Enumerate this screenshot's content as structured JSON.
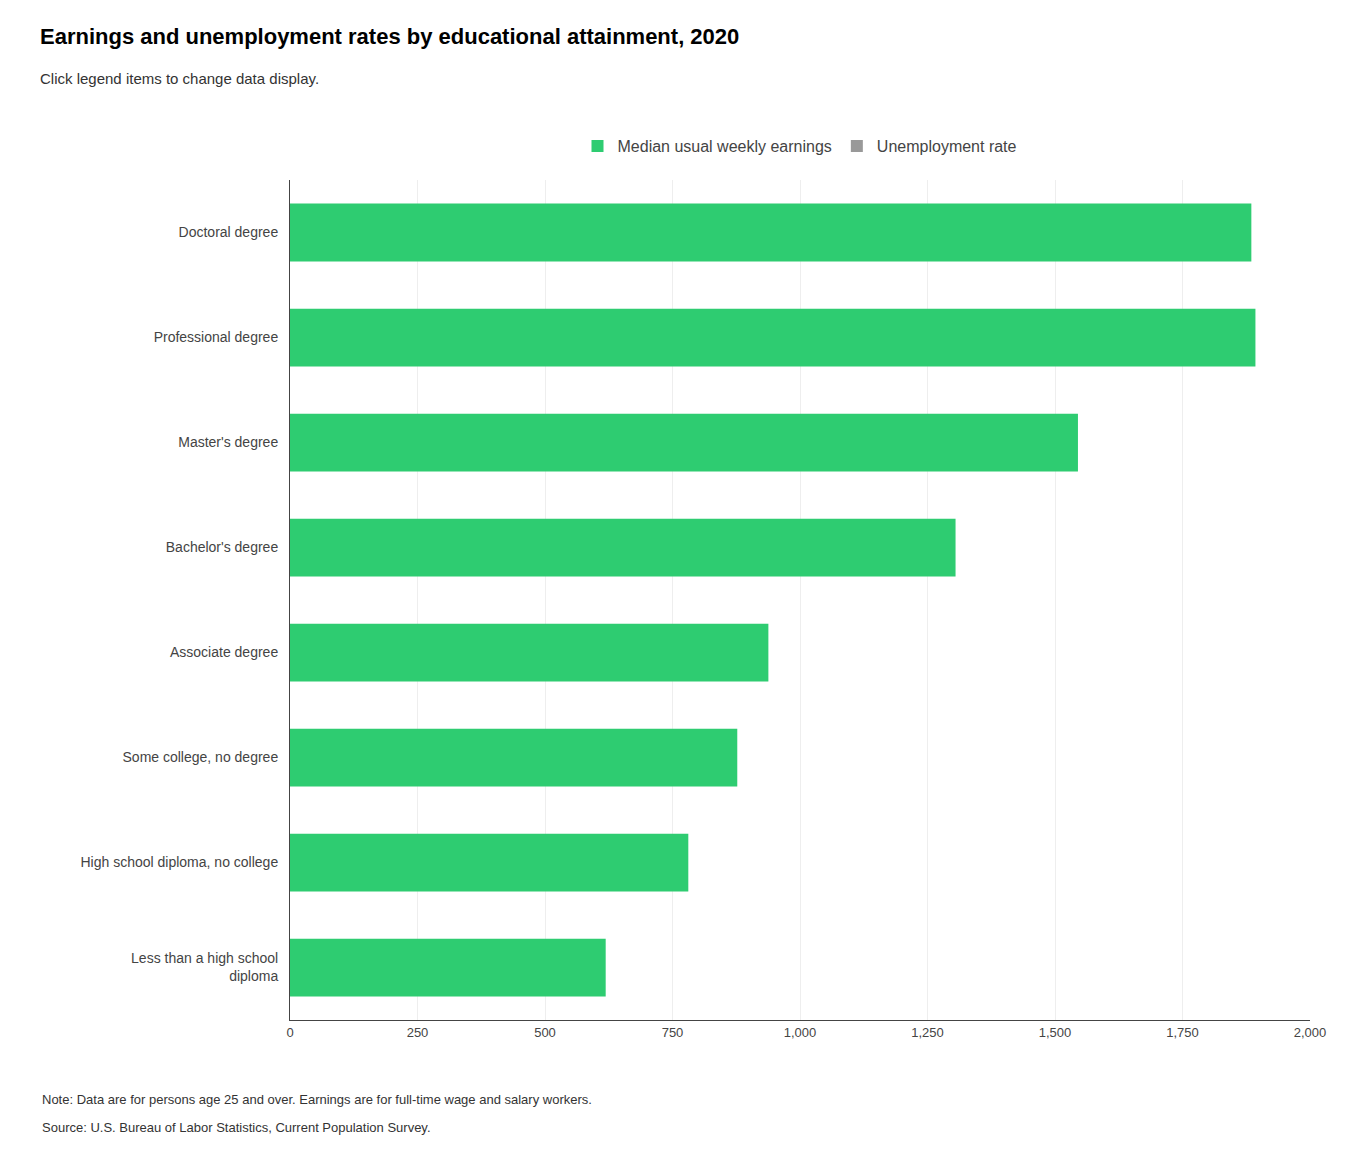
{
  "chart_data": {
    "type": "bar",
    "orientation": "horizontal",
    "title": "Earnings and unemployment rates by educational attainment, 2020",
    "subtitle": "Click legend items to change data display.",
    "categories": [
      "Doctoral degree",
      "Professional degree",
      "Master's degree",
      "Bachelor's degree",
      "Associate degree",
      "Some college, no degree",
      "High school diploma, no college",
      "Less than a high school\ndiploma"
    ],
    "series": [
      {
        "name": "Median usual weekly earnings",
        "color": "#2ecc71",
        "values": [
          1885,
          1893,
          1545,
          1305,
          938,
          877,
          781,
          619
        ]
      },
      {
        "name": "Unemployment rate",
        "color": "#999999",
        "values": [
          null,
          null,
          null,
          null,
          null,
          null,
          null,
          null
        ]
      }
    ],
    "xlim": [
      0,
      2000
    ],
    "xticks": [
      0,
      250,
      500,
      750,
      {
        "value": 1000,
        "label": "1,000"
      },
      {
        "value": 1250,
        "label": "1,250"
      },
      {
        "value": 1500,
        "label": "1,500"
      },
      {
        "value": 1750,
        "label": "1,750"
      },
      {
        "value": 2000,
        "label": "2,000"
      }
    ],
    "grid": true,
    "annotations": [
      "Note: Data are for persons age 25 and over. Earnings are for full-time wage and salary workers.",
      "Source: U.S. Bureau of Labor Statistics, Current Population Survey."
    ]
  }
}
